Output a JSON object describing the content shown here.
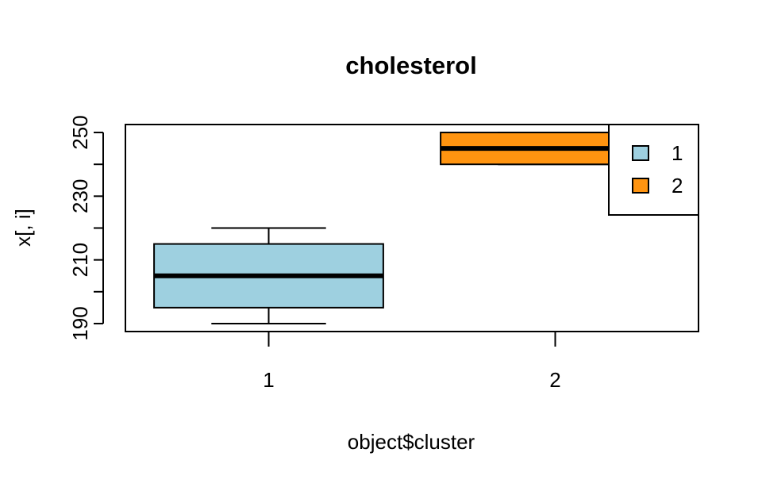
{
  "chart_data": {
    "type": "boxplot",
    "title": "cholesterol",
    "xlabel": "object$cluster",
    "ylabel": "x[, i]",
    "ylim": [
      187.5,
      252.5
    ],
    "yticks": [
      190,
      200,
      210,
      220,
      230,
      240,
      250
    ],
    "ytick_labels": [
      "190",
      "",
      "210",
      "",
      "230",
      "",
      "250"
    ],
    "categories": [
      "1",
      "2"
    ],
    "boxes": [
      {
        "category": "1",
        "whisker_low": 190,
        "q1": 195,
        "median": 205,
        "q3": 215,
        "whisker_high": 220,
        "color": "#9ED0E0"
      },
      {
        "category": "2",
        "whisker_low": 240,
        "q1": 240,
        "median": 245,
        "q3": 250,
        "whisker_high": 250,
        "color": "#FF9410"
      }
    ],
    "legend": {
      "position": "top-right",
      "entries": [
        {
          "label": "1",
          "color": "#9ED0E0"
        },
        {
          "label": "2",
          "color": "#FF9410"
        }
      ]
    },
    "grid": false
  }
}
